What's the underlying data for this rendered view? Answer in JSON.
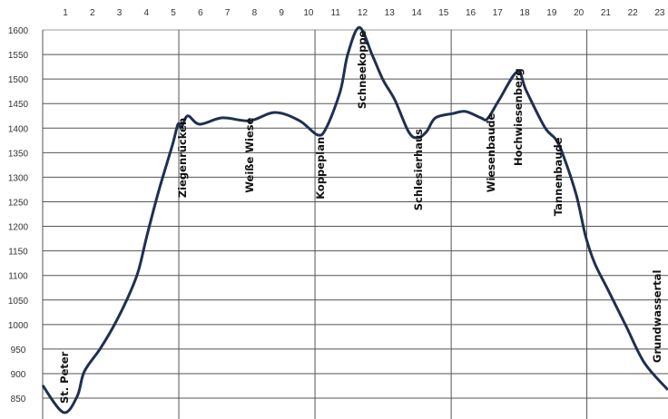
{
  "chart_data": {
    "type": "line",
    "title": "",
    "xlabel": "",
    "ylabel": "",
    "xlim": [
      0.16,
      23.3
    ],
    "ylim": [
      807,
      1600
    ],
    "x_ticks": [
      1,
      2,
      3,
      4,
      5,
      6,
      7,
      8,
      9,
      10,
      11,
      12,
      13,
      14,
      15,
      16,
      17,
      18,
      19,
      20,
      21,
      22,
      23
    ],
    "y_ticks": [
      850,
      900,
      950,
      1000,
      1050,
      1100,
      1150,
      1200,
      1250,
      1300,
      1350,
      1400,
      1450,
      1500,
      1550,
      1600
    ],
    "vertical_gridlines_at": [
      5.2,
      10.24,
      15.28,
      20.3
    ],
    "grid": true,
    "line_color": "#1f3050",
    "series": [
      {
        "x": [
          0.16,
          0.93,
          1.44,
          1.7,
          2.28,
          2.78,
          3.28,
          3.69,
          4.02,
          4.46,
          4.96,
          5.17,
          5.3,
          5.53,
          5.97,
          6.81,
          7.82,
          8.76,
          9.67,
          10.34,
          10.67,
          11.18,
          11.45,
          11.88,
          12.35,
          12.76,
          13.19,
          13.7,
          14.03,
          14.37,
          14.7,
          15.37,
          15.81,
          16.38,
          16.62,
          17.06,
          17.73,
          18.06,
          18.74,
          19.14,
          19.41,
          19.91,
          20.25,
          20.59,
          21.09,
          21.76,
          22.43,
          23.3
        ],
        "y": [
          876,
          821,
          854,
          904,
          950,
          996,
          1051,
          1107,
          1181,
          1273,
          1365,
          1408,
          1402,
          1425,
          1408,
          1421,
          1415,
          1432,
          1415,
          1386,
          1402,
          1476,
          1550,
          1605,
          1550,
          1498,
          1458,
          1393,
          1380,
          1393,
          1421,
          1430,
          1434,
          1421,
          1419,
          1458,
          1515,
          1476,
          1402,
          1378,
          1347,
          1264,
          1181,
          1125,
          1070,
          996,
          922,
          867
        ]
      }
    ],
    "annotations": [
      {
        "text": "St. Peter",
        "x": 0.93,
        "y": 839
      },
      {
        "text": "Ziegenrücken",
        "x": 5.3,
        "y": 1258
      },
      {
        "text": "Weiße Wiese",
        "x": 7.79,
        "y": 1268
      },
      {
        "text": "Koppeplan",
        "x": 10.4,
        "y": 1255
      },
      {
        "text": "Schneekoppe",
        "x": 11.95,
        "y": 1439
      },
      {
        "text": "Schlesierhaus",
        "x": 14.03,
        "y": 1232
      },
      {
        "text": "Wiesenbaude",
        "x": 16.72,
        "y": 1269
      },
      {
        "text": "Hochwiesenberg",
        "x": 17.73,
        "y": 1323
      },
      {
        "text": "Tannenbaude",
        "x": 19.21,
        "y": 1221
      },
      {
        "text": "Grundwassertal",
        "x": 22.87,
        "y": 922
      }
    ]
  }
}
